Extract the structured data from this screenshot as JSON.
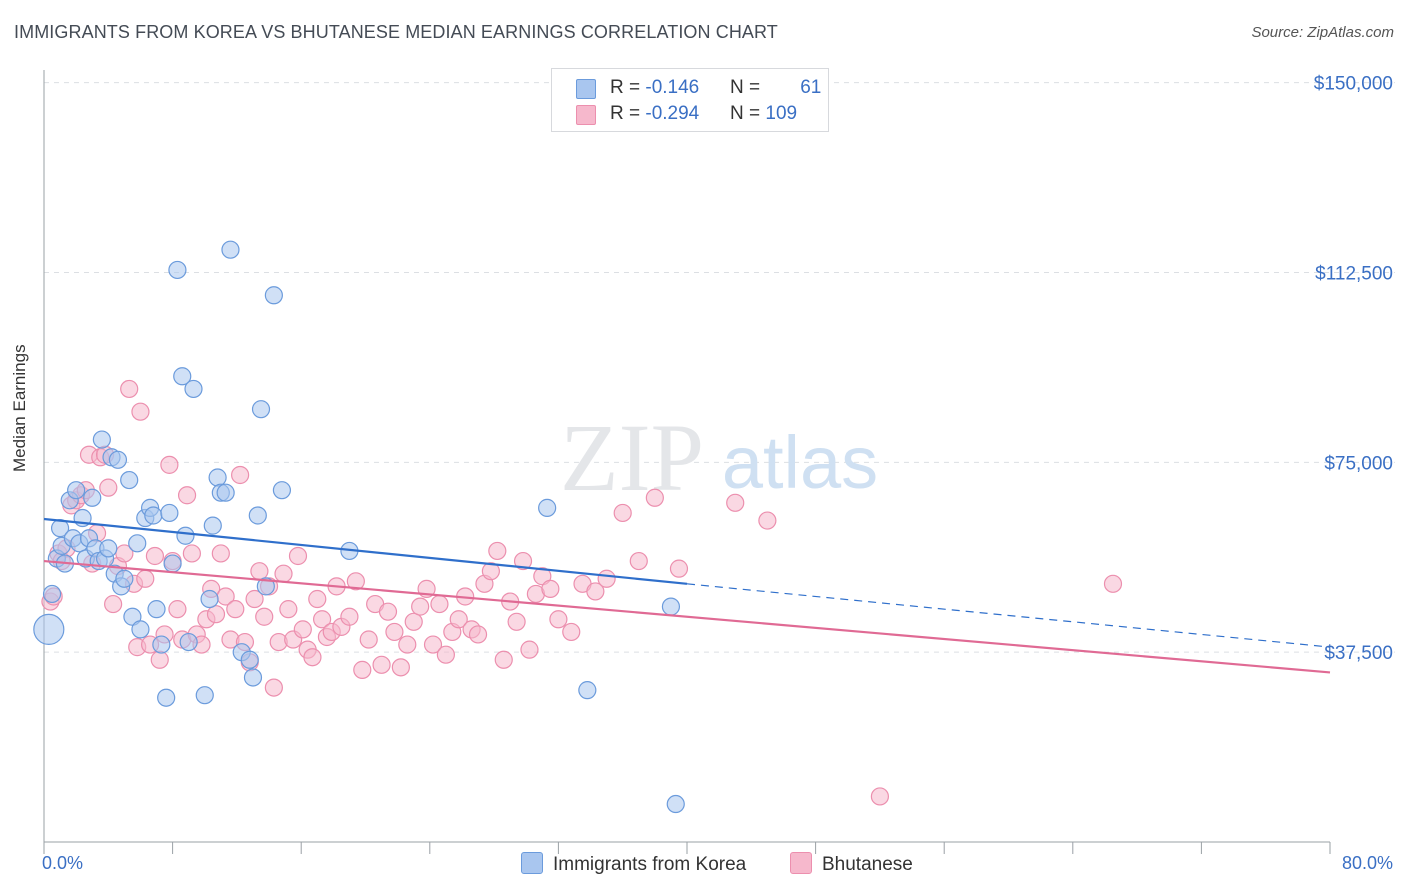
{
  "header": {
    "title": "IMMIGRANTS FROM KOREA VS BHUTANESE MEDIAN EARNINGS CORRELATION CHART",
    "source": "Source: ZipAtlas.com"
  },
  "watermark": {
    "zip": "ZIP",
    "atlas": "atlas"
  },
  "legend": {
    "korea": {
      "r_label": "R = ",
      "r_value": "-0.146",
      "n_label": "N = ",
      "n_value": "61",
      "color": "#a9c6ef"
    },
    "bhutanese": {
      "r_label": "R = ",
      "r_value": "-0.294",
      "n_label": "N = ",
      "n_value": "109",
      "color": "#f6b8cc"
    }
  },
  "chart_data": {
    "type": "scatter",
    "ylabel": "Median Earnings",
    "xlim": [
      0,
      80
    ],
    "ylim": [
      0,
      152500
    ],
    "x_tick_labels": [
      "0.0%",
      "80.0%"
    ],
    "y_ticks": [
      {
        "value": 37500,
        "label": "$37,500"
      },
      {
        "value": 75000,
        "label": "$75,000"
      },
      {
        "value": 112500,
        "label": "$112,500"
      },
      {
        "value": 150000,
        "label": "$150,000"
      }
    ],
    "grid": true,
    "legend_position": "top-center",
    "series": [
      {
        "name": "Immigrants from Korea",
        "color": "#6b9bdc",
        "fill": "#a9c6ef",
        "trend": {
          "x0": 0,
          "y0": 63800,
          "x1": 40,
          "y1": 51000,
          "dash_to_x": 80,
          "dash_to_y": 38500,
          "color": "#2f6fcb"
        },
        "points": [
          [
            0.5,
            49000
          ],
          [
            0.8,
            56000
          ],
          [
            1.0,
            62000
          ],
          [
            1.1,
            58500
          ],
          [
            1.3,
            55000
          ],
          [
            1.6,
            67500
          ],
          [
            1.8,
            60000
          ],
          [
            2.0,
            69500
          ],
          [
            2.2,
            59000
          ],
          [
            2.4,
            64000
          ],
          [
            2.6,
            56000
          ],
          [
            2.8,
            60000
          ],
          [
            3.0,
            68000
          ],
          [
            3.2,
            58000
          ],
          [
            3.4,
            55500
          ],
          [
            3.6,
            79500
          ],
          [
            3.8,
            56000
          ],
          [
            4.0,
            58000
          ],
          [
            4.2,
            76000
          ],
          [
            4.4,
            53000
          ],
          [
            4.6,
            75500
          ],
          [
            4.8,
            50500
          ],
          [
            5.0,
            52000
          ],
          [
            5.3,
            71500
          ],
          [
            5.5,
            44500
          ],
          [
            5.8,
            59000
          ],
          [
            6.0,
            42000
          ],
          [
            6.3,
            64000
          ],
          [
            6.6,
            66000
          ],
          [
            6.8,
            64500
          ],
          [
            7.0,
            46000
          ],
          [
            7.3,
            39000
          ],
          [
            7.6,
            28500
          ],
          [
            7.8,
            65000
          ],
          [
            8.0,
            55000
          ],
          [
            8.3,
            113000
          ],
          [
            8.6,
            92000
          ],
          [
            8.8,
            60500
          ],
          [
            9.0,
            39500
          ],
          [
            9.3,
            89500
          ],
          [
            10.0,
            29000
          ],
          [
            10.3,
            48000
          ],
          [
            10.5,
            62500
          ],
          [
            10.8,
            72000
          ],
          [
            11.0,
            69000
          ],
          [
            11.3,
            69000
          ],
          [
            11.6,
            117000
          ],
          [
            12.3,
            37500
          ],
          [
            12.8,
            36000
          ],
          [
            13.0,
            32500
          ],
          [
            13.3,
            64500
          ],
          [
            13.5,
            85500
          ],
          [
            13.8,
            50500
          ],
          [
            14.3,
            108000
          ],
          [
            14.8,
            69500
          ],
          [
            19.0,
            57500
          ],
          [
            31.3,
            66000
          ],
          [
            33.8,
            30000
          ],
          [
            39.0,
            46500
          ],
          [
            39.3,
            7500
          ],
          [
            0.3,
            42000
          ]
        ]
      },
      {
        "name": "Bhutanese",
        "color": "#ec8fae",
        "fill": "#f6b8cc",
        "trend": {
          "x0": 0,
          "y0": 55500,
          "x1": 80,
          "y1": 33500,
          "color": "#e06a94"
        },
        "points": [
          [
            0.4,
            47500
          ],
          [
            0.6,
            48500
          ],
          [
            0.9,
            57000
          ],
          [
            1.1,
            55500
          ],
          [
            1.4,
            58000
          ],
          [
            1.7,
            66500
          ],
          [
            2.0,
            67500
          ],
          [
            2.3,
            68500
          ],
          [
            2.6,
            69500
          ],
          [
            2.8,
            76500
          ],
          [
            3.0,
            55000
          ],
          [
            3.3,
            61000
          ],
          [
            3.5,
            76000
          ],
          [
            3.8,
            76500
          ],
          [
            4.0,
            70000
          ],
          [
            4.3,
            47000
          ],
          [
            4.6,
            54500
          ],
          [
            5.0,
            57000
          ],
          [
            5.3,
            89500
          ],
          [
            5.6,
            51000
          ],
          [
            5.8,
            38500
          ],
          [
            6.0,
            85000
          ],
          [
            6.3,
            52000
          ],
          [
            6.6,
            39000
          ],
          [
            6.9,
            56500
          ],
          [
            7.2,
            36000
          ],
          [
            7.5,
            41000
          ],
          [
            7.8,
            74500
          ],
          [
            8.0,
            55500
          ],
          [
            8.3,
            46000
          ],
          [
            8.6,
            40000
          ],
          [
            8.9,
            68500
          ],
          [
            9.2,
            57000
          ],
          [
            9.5,
            41000
          ],
          [
            9.8,
            39000
          ],
          [
            10.1,
            44000
          ],
          [
            10.4,
            50000
          ],
          [
            10.7,
            45000
          ],
          [
            11.0,
            57000
          ],
          [
            11.3,
            48500
          ],
          [
            11.6,
            40000
          ],
          [
            11.9,
            46000
          ],
          [
            12.2,
            72500
          ],
          [
            12.5,
            39500
          ],
          [
            12.8,
            35500
          ],
          [
            13.1,
            48000
          ],
          [
            13.4,
            53500
          ],
          [
            13.7,
            44500
          ],
          [
            14.0,
            50500
          ],
          [
            14.3,
            30500
          ],
          [
            14.6,
            39500
          ],
          [
            14.9,
            53000
          ],
          [
            15.2,
            46000
          ],
          [
            15.5,
            40000
          ],
          [
            15.8,
            56500
          ],
          [
            16.1,
            42000
          ],
          [
            16.4,
            38000
          ],
          [
            16.7,
            36500
          ],
          [
            17.0,
            48000
          ],
          [
            17.3,
            44000
          ],
          [
            17.6,
            40500
          ],
          [
            17.9,
            41500
          ],
          [
            18.2,
            50500
          ],
          [
            18.5,
            42500
          ],
          [
            19.0,
            44500
          ],
          [
            19.4,
            51500
          ],
          [
            19.8,
            34000
          ],
          [
            20.2,
            40000
          ],
          [
            20.6,
            47000
          ],
          [
            21.0,
            35000
          ],
          [
            21.4,
            45500
          ],
          [
            21.8,
            41500
          ],
          [
            22.2,
            34500
          ],
          [
            22.6,
            39000
          ],
          [
            23.0,
            43500
          ],
          [
            23.4,
            46500
          ],
          [
            23.8,
            50000
          ],
          [
            24.2,
            39000
          ],
          [
            24.6,
            47000
          ],
          [
            25.0,
            37000
          ],
          [
            25.4,
            41500
          ],
          [
            25.8,
            44000
          ],
          [
            26.2,
            48500
          ],
          [
            26.6,
            42000
          ],
          [
            27.0,
            41000
          ],
          [
            27.4,
            51000
          ],
          [
            27.8,
            53500
          ],
          [
            28.2,
            57500
          ],
          [
            28.6,
            36000
          ],
          [
            29.0,
            47500
          ],
          [
            29.4,
            43500
          ],
          [
            29.8,
            55500
          ],
          [
            30.2,
            38000
          ],
          [
            30.6,
            49000
          ],
          [
            31.0,
            52500
          ],
          [
            31.5,
            50000
          ],
          [
            32.0,
            44000
          ],
          [
            32.8,
            41500
          ],
          [
            33.5,
            51000
          ],
          [
            34.3,
            49500
          ],
          [
            35.0,
            52000
          ],
          [
            36.0,
            65000
          ],
          [
            37.0,
            55500
          ],
          [
            38.0,
            68000
          ],
          [
            39.5,
            54000
          ],
          [
            43.0,
            67000
          ],
          [
            45.0,
            63500
          ],
          [
            52.0,
            9000
          ],
          [
            66.5,
            51000
          ]
        ]
      }
    ]
  }
}
